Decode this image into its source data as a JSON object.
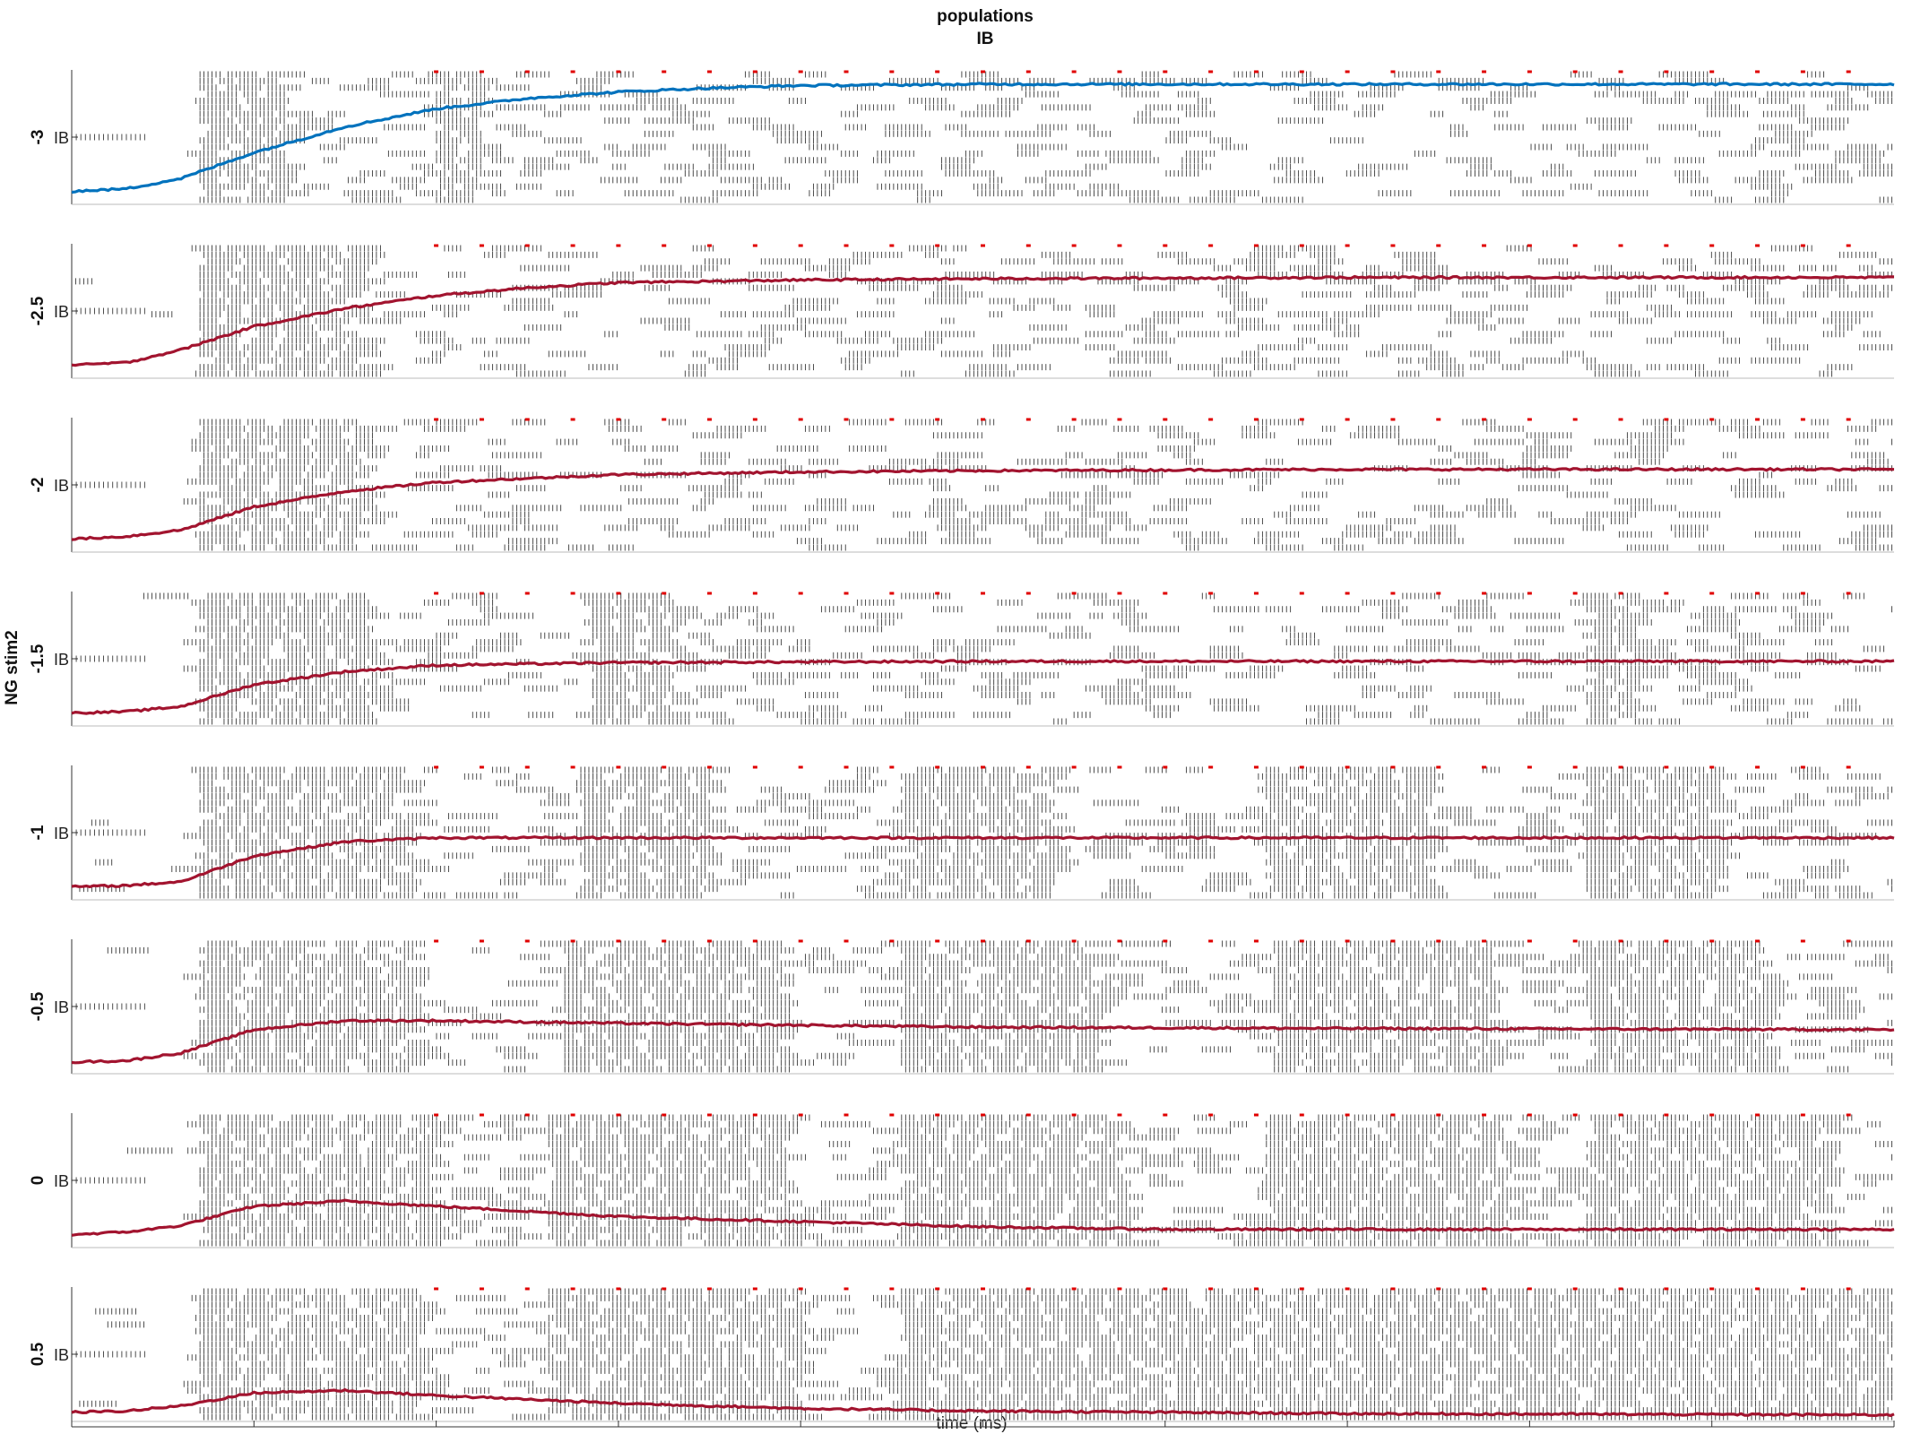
{
  "chart_data": {
    "type": "raster",
    "title": "populations",
    "subtitle": "IB",
    "xlabel": "time (ms)",
    "ylabel": "NG stim2",
    "xlim": [
      0,
      1000
    ],
    "xticks": [
      "0",
      "100",
      "200",
      "300",
      "400",
      "500",
      "600",
      "700",
      "800",
      "900",
      "1000"
    ],
    "population_label": "IB",
    "panels": [
      {
        "value": "-3",
        "trace_color": "#0072BD",
        "trace": [
          [
            0,
            0.08
          ],
          [
            30,
            0.1
          ],
          [
            60,
            0.18
          ],
          [
            100,
            0.38
          ],
          [
            150,
            0.58
          ],
          [
            200,
            0.72
          ],
          [
            250,
            0.8
          ],
          [
            300,
            0.85
          ],
          [
            350,
            0.88
          ],
          [
            400,
            0.9
          ],
          [
            500,
            0.91
          ],
          [
            600,
            0.91
          ],
          [
            800,
            0.91
          ],
          [
            1000,
            0.91
          ]
        ],
        "bursts": [
          [
            70,
            115
          ],
          [
            200,
            220
          ]
        ]
      },
      {
        "value": "-2.5",
        "trace_color": "#A2142F",
        "trace": [
          [
            0,
            0.08
          ],
          [
            30,
            0.1
          ],
          [
            60,
            0.2
          ],
          [
            100,
            0.38
          ],
          [
            150,
            0.52
          ],
          [
            200,
            0.62
          ],
          [
            250,
            0.68
          ],
          [
            300,
            0.72
          ],
          [
            400,
            0.74
          ],
          [
            500,
            0.75
          ],
          [
            700,
            0.76
          ],
          [
            1000,
            0.76
          ]
        ],
        "bursts": [
          [
            70,
            155
          ]
        ]
      },
      {
        "value": "-2",
        "trace_color": "#A2142F",
        "trace": [
          [
            0,
            0.08
          ],
          [
            30,
            0.1
          ],
          [
            60,
            0.15
          ],
          [
            100,
            0.33
          ],
          [
            150,
            0.45
          ],
          [
            200,
            0.52
          ],
          [
            250,
            0.55
          ],
          [
            300,
            0.58
          ],
          [
            400,
            0.6
          ],
          [
            500,
            0.61
          ],
          [
            700,
            0.62
          ],
          [
            1000,
            0.62
          ]
        ],
        "bursts": [
          [
            70,
            160
          ]
        ]
      },
      {
        "value": "-1.5",
        "trace_color": "#A2142F",
        "trace": [
          [
            0,
            0.08
          ],
          [
            30,
            0.09
          ],
          [
            60,
            0.13
          ],
          [
            100,
            0.3
          ],
          [
            150,
            0.4
          ],
          [
            200,
            0.45
          ],
          [
            300,
            0.47
          ],
          [
            500,
            0.48
          ],
          [
            700,
            0.48
          ],
          [
            1000,
            0.48
          ]
        ],
        "bursts": [
          [
            70,
            165
          ],
          [
            285,
            330
          ],
          [
            830,
            860
          ]
        ]
      },
      {
        "value": "-1",
        "trace_color": "#A2142F",
        "trace": [
          [
            0,
            0.08
          ],
          [
            30,
            0.09
          ],
          [
            60,
            0.12
          ],
          [
            100,
            0.32
          ],
          [
            150,
            0.43
          ],
          [
            200,
            0.46
          ],
          [
            300,
            0.46
          ],
          [
            500,
            0.46
          ],
          [
            700,
            0.46
          ],
          [
            1000,
            0.46
          ]
        ],
        "bursts": [
          [
            70,
            180
          ],
          [
            275,
            350
          ],
          [
            455,
            540
          ],
          [
            655,
            740
          ],
          [
            830,
            900
          ]
        ]
      },
      {
        "value": "-0.5",
        "trace_color": "#A2142F",
        "trace": [
          [
            0,
            0.07
          ],
          [
            30,
            0.08
          ],
          [
            60,
            0.14
          ],
          [
            100,
            0.32
          ],
          [
            150,
            0.39
          ],
          [
            200,
            0.39
          ],
          [
            300,
            0.37
          ],
          [
            500,
            0.34
          ],
          [
            700,
            0.33
          ],
          [
            1000,
            0.32
          ]
        ],
        "bursts": [
          [
            70,
            185
          ],
          [
            270,
            390
          ],
          [
            455,
            560
          ],
          [
            660,
            780
          ],
          [
            830,
            930
          ]
        ]
      },
      {
        "value": "0",
        "trace_color": "#A2142F",
        "trace": [
          [
            0,
            0.08
          ],
          [
            30,
            0.1
          ],
          [
            60,
            0.15
          ],
          [
            100,
            0.3
          ],
          [
            150,
            0.34
          ],
          [
            200,
            0.3
          ],
          [
            300,
            0.22
          ],
          [
            400,
            0.18
          ],
          [
            500,
            0.14
          ],
          [
            600,
            0.12
          ],
          [
            700,
            0.12
          ],
          [
            1000,
            0.12
          ]
        ],
        "bursts": [
          [
            70,
            200
          ],
          [
            260,
            395
          ],
          [
            455,
            575
          ],
          [
            655,
            790
          ],
          [
            830,
            965
          ]
        ]
      },
      {
        "value": "0.5",
        "trace_color": "#A2142F",
        "trace": [
          [
            0,
            0.05
          ],
          [
            30,
            0.06
          ],
          [
            60,
            0.1
          ],
          [
            100,
            0.2
          ],
          [
            150,
            0.22
          ],
          [
            200,
            0.18
          ],
          [
            300,
            0.12
          ],
          [
            400,
            0.08
          ],
          [
            500,
            0.06
          ],
          [
            700,
            0.04
          ],
          [
            1000,
            0.03
          ]
        ],
        "bursts": [
          [
            70,
            190
          ],
          [
            260,
            400
          ],
          [
            455,
            1000
          ]
        ]
      }
    ]
  }
}
